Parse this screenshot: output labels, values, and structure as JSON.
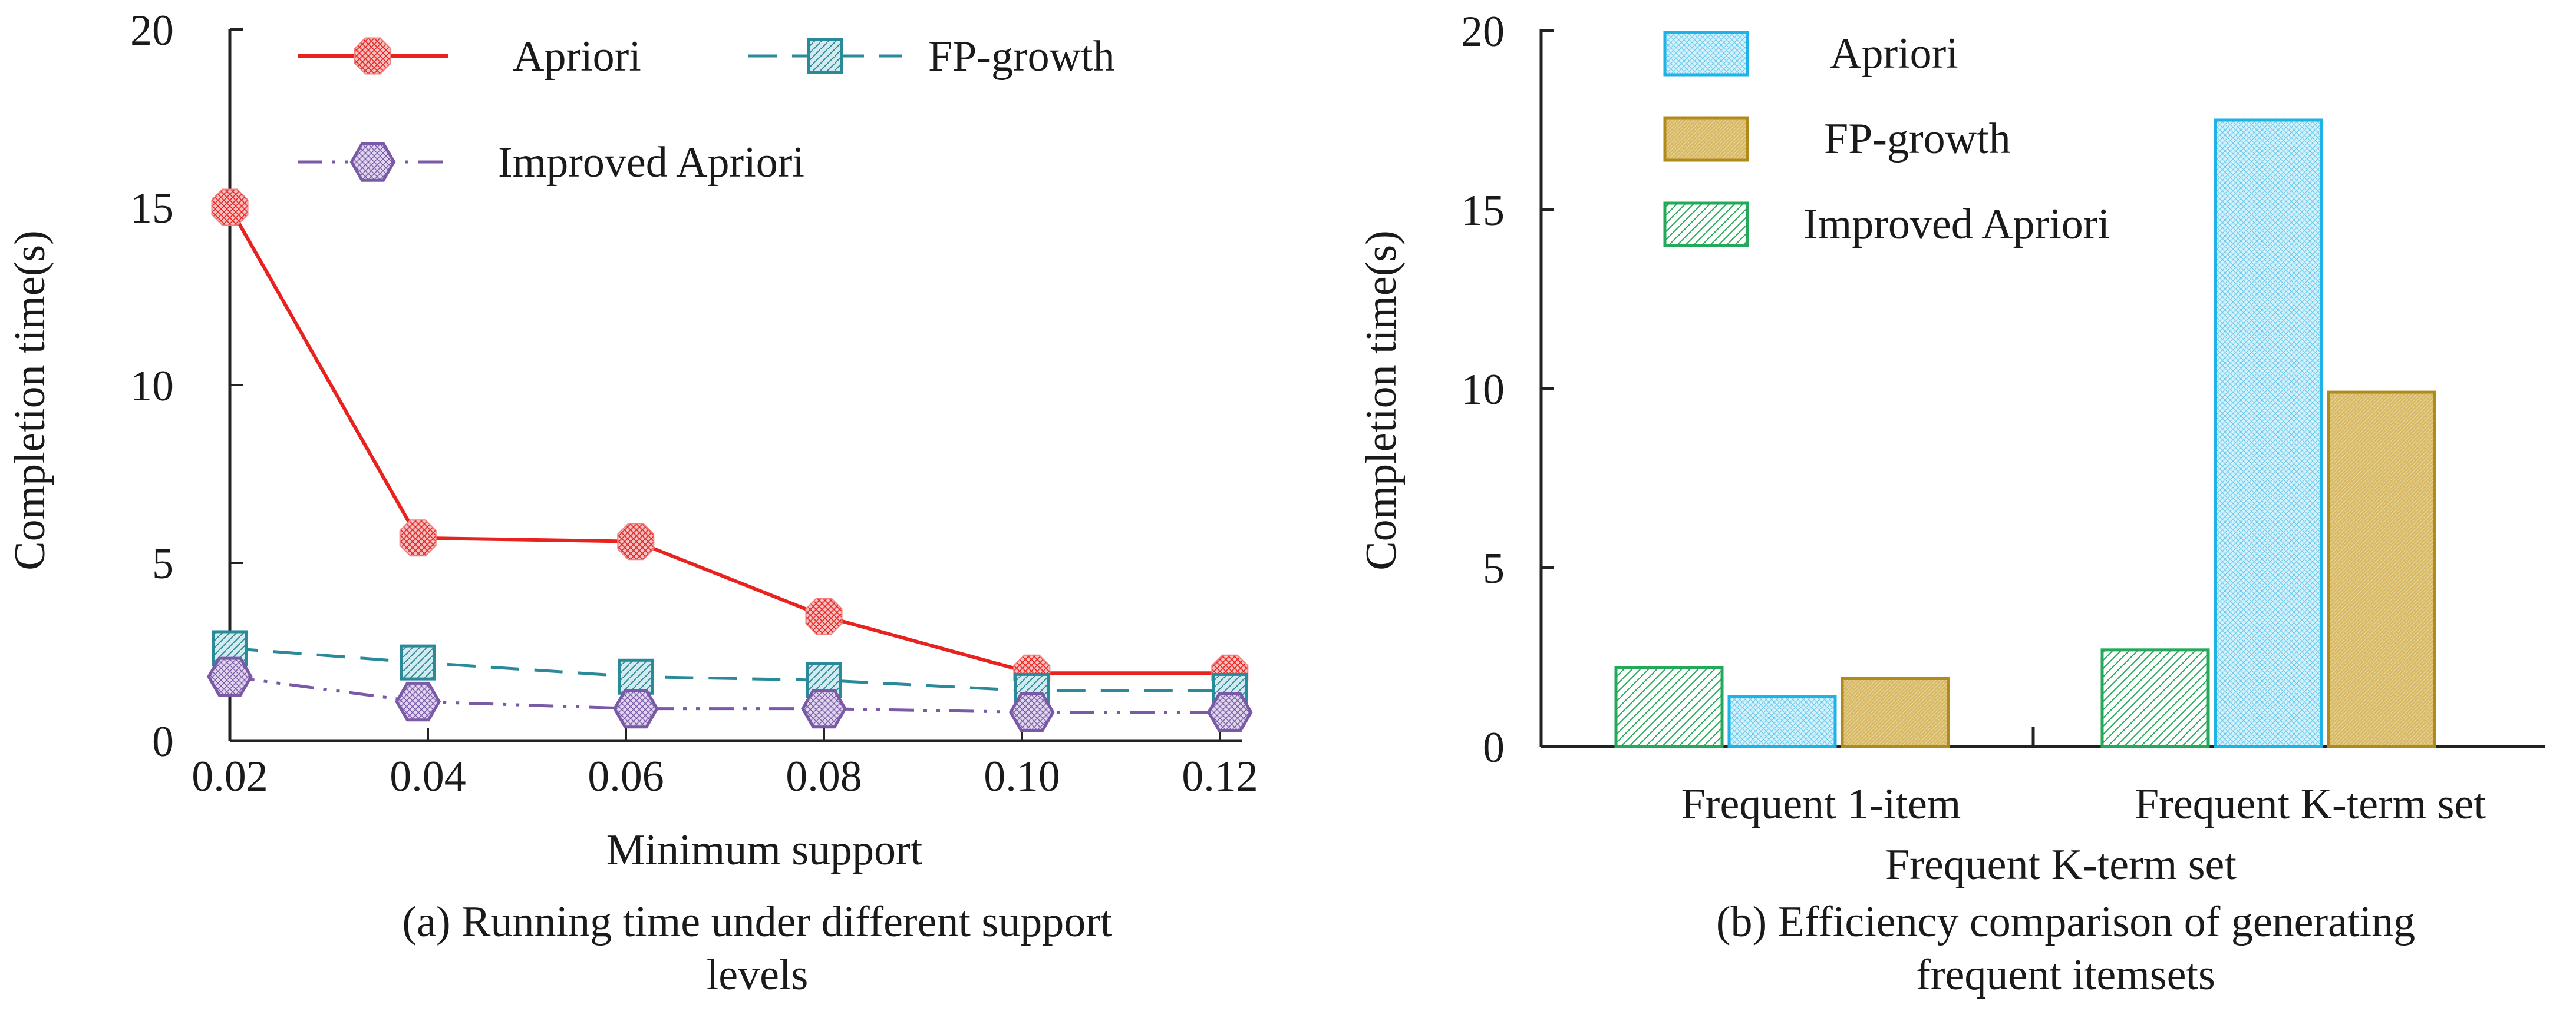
{
  "colors": {
    "apriori_line": "#e8231f",
    "apriori_marker_fill": "#f2a0a0",
    "fpgrowth_line": "#2a8a9a",
    "fpgrowth_marker_fill": "#b9dbe0",
    "improved_line": "#7a5aa6",
    "improved_marker_fill": "#d4c6e6",
    "bar_apriori_stroke": "#1fb2e6",
    "bar_apriori_fill": "#cdeefa",
    "bar_fpgrowth_stroke": "#b08a1a",
    "bar_fpgrowth_fill": "#dcc07a",
    "bar_improved_stroke": "#24a85a",
    "bar_improved_fill": "#d6efdf"
  },
  "chart_data": [
    {
      "type": "line",
      "caption": "(a) Running time under different support levels",
      "xlabel": "Minimum support",
      "ylabel": "Completion time(s)",
      "x": [
        0.02,
        0.04,
        0.06,
        0.08,
        0.1,
        0.12
      ],
      "x_ticks": [
        "0.02",
        "0.04",
        "0.06",
        "0.08",
        "0.10",
        "0.12"
      ],
      "y_ticks": [
        "0",
        "5",
        "10",
        "15",
        "20"
      ],
      "xlim": [
        0.02,
        0.12
      ],
      "ylim": [
        0,
        20
      ],
      "grid": false,
      "legend_position": "top",
      "series": [
        {
          "name": "Apriori",
          "style": "solid",
          "marker": "octagon",
          "x": [
            0.02,
            0.039,
            0.061,
            0.08,
            0.101,
            0.121
          ],
          "values": [
            15.0,
            5.7,
            5.6,
            3.5,
            1.9,
            1.9
          ]
        },
        {
          "name": "FP-growth",
          "style": "dashed",
          "marker": "square",
          "x": [
            0.02,
            0.039,
            0.061,
            0.08,
            0.101,
            0.121
          ],
          "values": [
            2.6,
            2.2,
            1.8,
            1.7,
            1.4,
            1.4
          ]
        },
        {
          "name": "Improved Apriori",
          "style": "dash-dot-dot",
          "marker": "hexagon",
          "x": [
            0.02,
            0.039,
            0.061,
            0.08,
            0.101,
            0.121
          ],
          "values": [
            1.8,
            1.1,
            0.9,
            0.9,
            0.8,
            0.8
          ]
        }
      ]
    },
    {
      "type": "bar",
      "caption": "(b) Efficiency comparison of generating frequent itemsets",
      "xlabel": "Frequent K-term set",
      "ylabel": "Completion time(s)",
      "categories": [
        "Frequent 1-item",
        "Frequent K-term set"
      ],
      "y_ticks": [
        "0",
        "5",
        "10",
        "15",
        "20"
      ],
      "ylim": [
        0,
        20
      ],
      "grid": false,
      "legend_position": "top-left",
      "bar_order": [
        "Improved Apriori",
        "Apriori",
        "FP-growth"
      ],
      "series": [
        {
          "name": "Apriori",
          "values": [
            1.4,
            17.5
          ]
        },
        {
          "name": "FP-growth",
          "values": [
            1.9,
            9.9
          ]
        },
        {
          "name": "Improved Apriori",
          "values": [
            2.2,
            2.7
          ]
        }
      ]
    }
  ]
}
